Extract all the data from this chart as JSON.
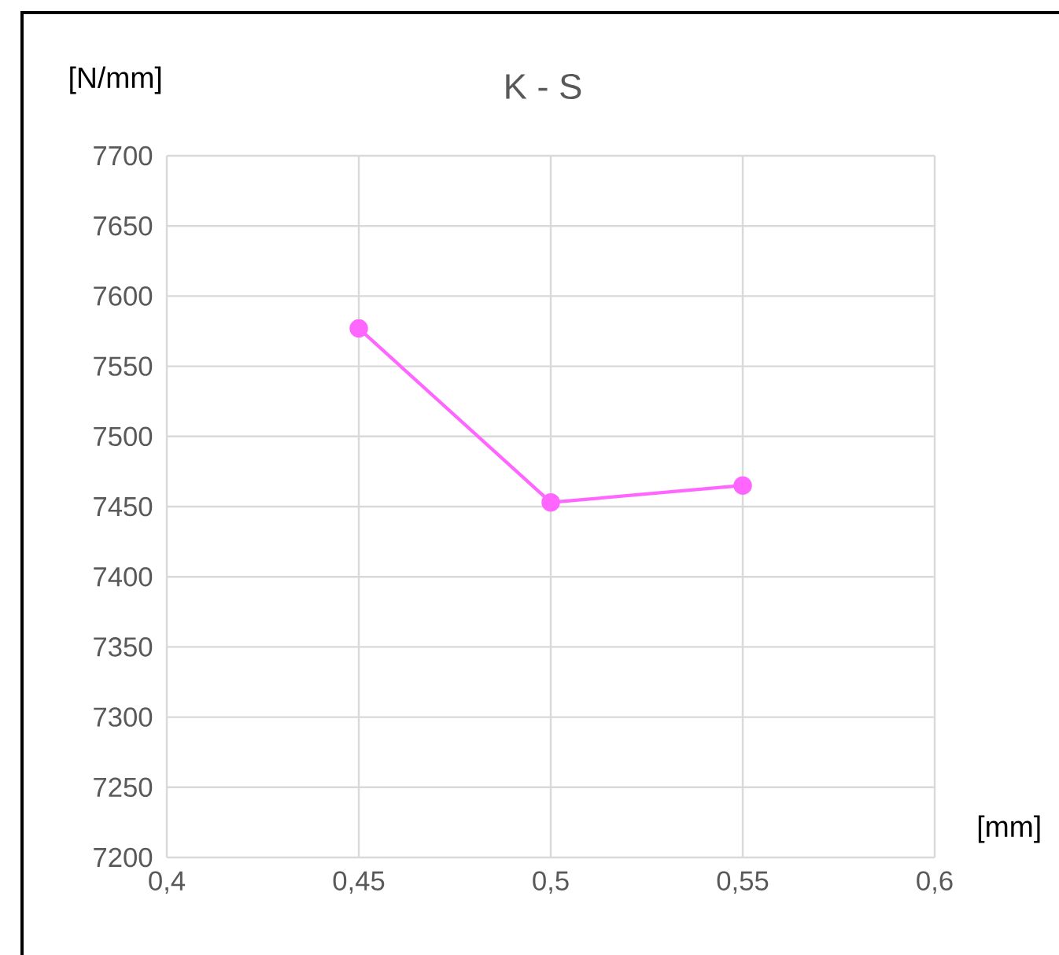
{
  "chart_data": {
    "type": "line",
    "title": "K - S",
    "xlabel": "[mm]",
    "ylabel": "[N/mm]",
    "x": [
      0.45,
      0.5,
      0.55
    ],
    "series": [
      {
        "color": "#ff66ff",
        "values": [
          7577,
          7453,
          7465
        ]
      }
    ],
    "xlim": [
      0.4,
      0.6
    ],
    "ylim": [
      7200,
      7700
    ],
    "xticks": [
      {
        "value": 0.4,
        "label": "0,4"
      },
      {
        "value": 0.45,
        "label": "0,45"
      },
      {
        "value": 0.5,
        "label": "0,5"
      },
      {
        "value": 0.55,
        "label": "0,55"
      },
      {
        "value": 0.6,
        "label": "0,6"
      }
    ],
    "yticks": [
      7200,
      7250,
      7300,
      7350,
      7400,
      7450,
      7500,
      7550,
      7600,
      7650,
      7700
    ],
    "grid": true,
    "marker": "circle",
    "line_style": "solid"
  }
}
